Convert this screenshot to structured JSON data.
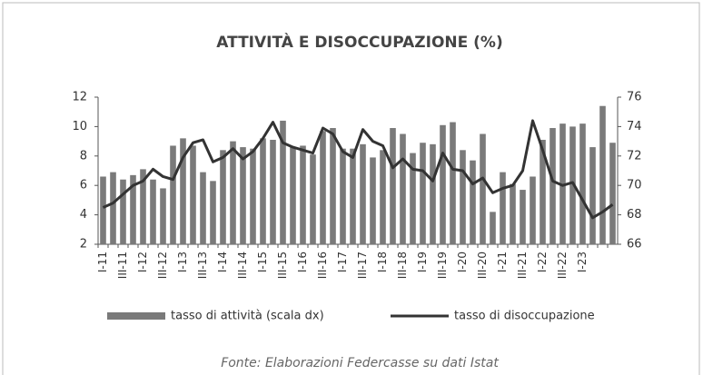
{
  "chart_data": {
    "type": "bar-line",
    "title": "ATTIVITÀ E DISOCCUPAZIONE (%)",
    "source": "Fonte: Elaborazioni Federcasse su dati Istat",
    "categories": [
      "I-11",
      null,
      "III-11",
      null,
      "I-12",
      null,
      "III-12",
      null,
      "I-13",
      null,
      "III-13",
      null,
      "I-14",
      null,
      "III-14",
      null,
      "I-15",
      null,
      "III-15",
      null,
      "I-16",
      null,
      "III-16",
      null,
      "I-17",
      null,
      "III-17",
      null,
      "I-18",
      null,
      "III-18",
      null,
      "I-19",
      null,
      "III-19",
      null,
      "I-20",
      null,
      "III-20",
      null,
      "I-21",
      null,
      "III-21",
      null,
      "I-22",
      null,
      "III-22",
      null,
      "I-23",
      null,
      null,
      null
    ],
    "ylim": [
      2,
      12
    ],
    "yticks": [
      2,
      4,
      6,
      8,
      10,
      12
    ],
    "y2lim": [
      66,
      76
    ],
    "y2ticks": [
      66,
      68,
      70,
      72,
      74,
      76
    ],
    "series": [
      {
        "name": "tasso di attività (scala dx)",
        "type": "bar",
        "axis": "y2",
        "color": "#7a7a7a",
        "values": [
          70.6,
          70.9,
          70.4,
          70.7,
          71.1,
          70.4,
          69.8,
          72.7,
          73.2,
          72.7,
          70.9,
          70.3,
          72.4,
          73.0,
          72.6,
          72.5,
          73.2,
          73.1,
          74.4,
          72.6,
          72.7,
          72.1,
          73.7,
          73.9,
          72.5,
          72.5,
          72.8,
          71.9,
          72.4,
          73.9,
          73.5,
          72.2,
          72.9,
          72.8,
          74.1,
          74.3,
          72.4,
          71.7,
          73.5,
          68.2,
          70.9,
          70.1,
          69.7,
          70.6,
          73.1,
          73.9,
          74.2,
          74.0,
          74.2,
          72.6,
          75.4,
          72.9
        ]
      },
      {
        "name": "tasso di disoccupazione",
        "type": "line",
        "color": "#333333",
        "values": [
          4.5,
          4.8,
          5.4,
          6.0,
          6.3,
          7.1,
          6.6,
          6.4,
          7.9,
          8.9,
          9.1,
          7.6,
          7.9,
          8.5,
          7.8,
          8.3,
          9.2,
          10.3,
          8.9,
          8.6,
          8.4,
          8.2,
          9.9,
          9.5,
          8.3,
          7.9,
          9.8,
          9.0,
          8.7,
          7.2,
          7.8,
          7.1,
          7.0,
          6.3,
          8.2,
          7.1,
          7.0,
          6.1,
          6.5,
          5.5,
          5.8,
          6.0,
          7.0,
          10.4,
          8.4,
          6.3,
          6.0,
          6.2,
          5.0,
          3.8,
          4.2,
          4.7
        ]
      }
    ]
  }
}
